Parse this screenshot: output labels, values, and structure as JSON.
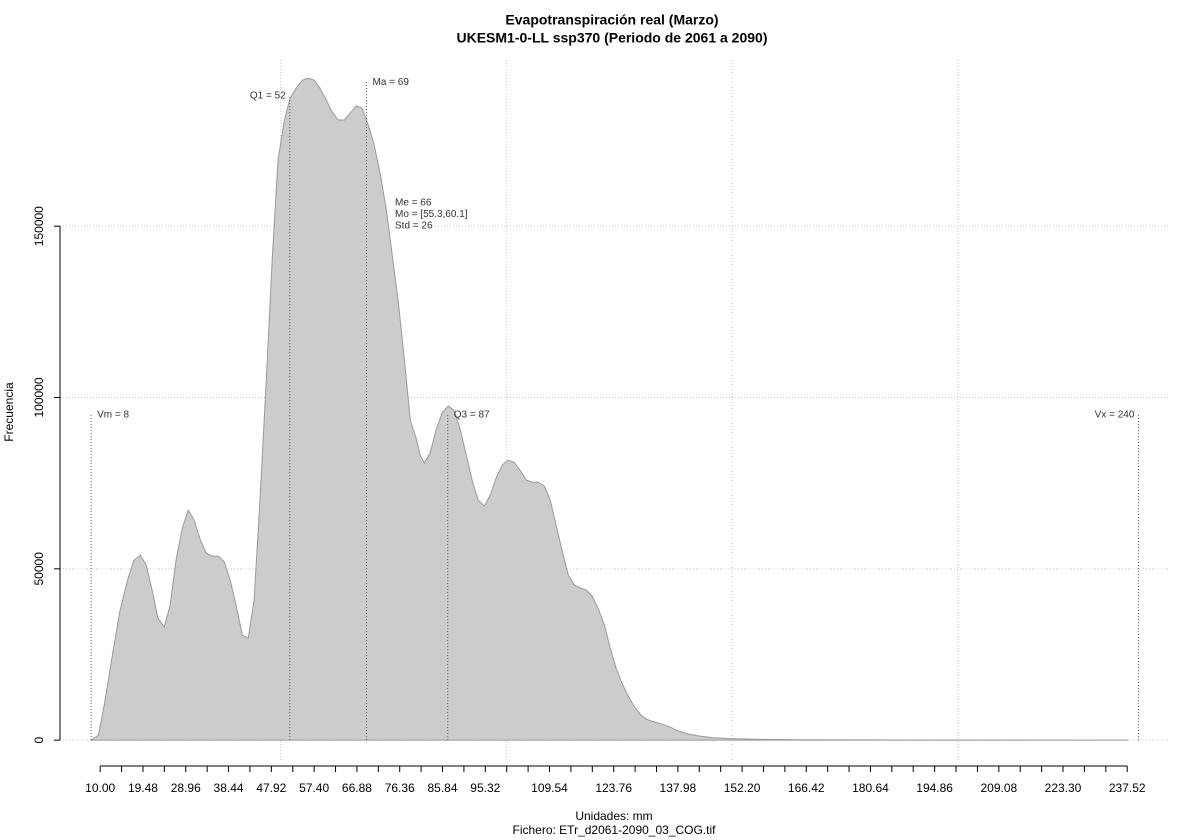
{
  "chart_data": {
    "type": "area",
    "title": "Evapotranspiración real (Marzo)",
    "subtitle": "UKESM1-0-LL ssp370 (Periodo de 2061 a 2090)",
    "x_label": "Unidades: mm",
    "footnote": "Fichero: ETr_d2061-2090_03_COG.tif",
    "y_label": "Frecuencia",
    "color": "#cccccc",
    "line_color": "#9a9a9a",
    "grid": true,
    "xgrid": [
      50,
      100,
      150,
      200
    ],
    "xlim": [
      1.1,
      247.0
    ],
    "ylim": [
      -5800,
      198500
    ],
    "yticks": [
      0,
      50000,
      100000,
      150000
    ],
    "xticks": [
      {
        "value": 10.0,
        "label": "10.00"
      },
      {
        "value": 14.74,
        "label": null
      },
      {
        "value": 19.48,
        "label": "19.48"
      },
      {
        "value": 24.22,
        "label": null
      },
      {
        "value": 28.96,
        "label": "28.96"
      },
      {
        "value": 33.7,
        "label": null
      },
      {
        "value": 38.44,
        "label": "38.44"
      },
      {
        "value": 43.18,
        "label": null
      },
      {
        "value": 47.92,
        "label": "47.92"
      },
      {
        "value": 52.66,
        "label": null
      },
      {
        "value": 57.4,
        "label": "57.40"
      },
      {
        "value": 62.14,
        "label": null
      },
      {
        "value": 66.88,
        "label": "66.88"
      },
      {
        "value": 71.62,
        "label": null
      },
      {
        "value": 76.36,
        "label": "76.36"
      },
      {
        "value": 81.1,
        "label": null
      },
      {
        "value": 85.84,
        "label": "85.84"
      },
      {
        "value": 90.58,
        "label": null
      },
      {
        "value": 95.32,
        "label": "95.32"
      },
      {
        "value": 100.06,
        "label": null
      },
      {
        "value": 104.8,
        "label": null
      },
      {
        "value": 109.54,
        "label": "109.54"
      },
      {
        "value": 114.28,
        "label": null
      },
      {
        "value": 119.02,
        "label": null
      },
      {
        "value": 123.76,
        "label": "123.76"
      },
      {
        "value": 128.5,
        "label": null
      },
      {
        "value": 133.24,
        "label": null
      },
      {
        "value": 137.98,
        "label": "137.98"
      },
      {
        "value": 142.72,
        "label": null
      },
      {
        "value": 147.46,
        "label": null
      },
      {
        "value": 152.2,
        "label": "152.20"
      },
      {
        "value": 156.94,
        "label": null
      },
      {
        "value": 161.68,
        "label": null
      },
      {
        "value": 166.42,
        "label": "166.42"
      },
      {
        "value": 171.16,
        "label": null
      },
      {
        "value": 175.9,
        "label": null
      },
      {
        "value": 180.64,
        "label": "180.64"
      },
      {
        "value": 185.38,
        "label": null
      },
      {
        "value": 190.12,
        "label": null
      },
      {
        "value": 194.86,
        "label": "194.86"
      },
      {
        "value": 199.6,
        "label": null
      },
      {
        "value": 204.34,
        "label": null
      },
      {
        "value": 209.08,
        "label": "209.08"
      },
      {
        "value": 213.82,
        "label": null
      },
      {
        "value": 218.56,
        "label": null
      },
      {
        "value": 223.3,
        "label": "223.30"
      },
      {
        "value": 228.04,
        "label": null
      },
      {
        "value": 232.78,
        "label": null
      },
      {
        "value": 237.52,
        "label": "237.52"
      }
    ],
    "x": [
      8.0,
      9.6,
      10.9,
      12.7,
      14.4,
      16.2,
      17.5,
      18.9,
      20.2,
      21.5,
      22.8,
      24.2,
      25.5,
      26.8,
      28.2,
      29.5,
      30.8,
      32.2,
      33.5,
      34.8,
      36.2,
      37.5,
      38.8,
      40.1,
      41.5,
      42.8,
      44.1,
      45.4,
      46.8,
      48.1,
      49.4,
      50.8,
      52.1,
      53.4,
      54.8,
      56.1,
      57.4,
      58.7,
      60.1,
      61.4,
      62.7,
      64.1,
      65.4,
      66.7,
      68.0,
      69.4,
      70.7,
      72.1,
      73.4,
      74.7,
      76.0,
      77.4,
      78.7,
      80.1,
      80.9,
      81.8,
      83.1,
      84.4,
      85.8,
      87.1,
      88.4,
      89.8,
      91.1,
      92.4,
      93.7,
      95.1,
      96.4,
      97.7,
      99.1,
      100.4,
      101.7,
      103.0,
      104.4,
      105.7,
      107.0,
      108.4,
      109.7,
      111.0,
      112.4,
      113.7,
      115.0,
      116.4,
      117.7,
      119.0,
      120.3,
      121.7,
      123.0,
      124.3,
      125.6,
      127.0,
      128.3,
      129.6,
      131.0,
      132.3,
      133.6,
      135.0,
      136.3,
      137.6,
      139.0,
      140.3,
      141.6,
      142.9,
      145.6,
      149.6,
      156.2,
      165.1,
      178.4,
      209.4,
      237.7
    ],
    "values": [
      0,
      1460,
      10200,
      24800,
      37900,
      47300,
      52500,
      54000,
      51100,
      43800,
      35600,
      33000,
      39400,
      52500,
      61900,
      67100,
      64200,
      58400,
      54600,
      53700,
      53700,
      52000,
      46700,
      39400,
      30600,
      29800,
      40900,
      70100,
      105100,
      140100,
      169300,
      181000,
      187400,
      190300,
      192600,
      193200,
      192600,
      190300,
      186800,
      183300,
      181000,
      181000,
      183000,
      185100,
      184500,
      179500,
      173700,
      164900,
      154700,
      141600,
      128400,
      110900,
      93400,
      87600,
      83200,
      80900,
      83800,
      90500,
      95700,
      97500,
      96300,
      90500,
      83200,
      75900,
      70100,
      68300,
      71500,
      76500,
      80300,
      81700,
      81100,
      78800,
      75900,
      75300,
      75300,
      74100,
      70100,
      62800,
      54900,
      48200,
      45300,
      44400,
      43800,
      42000,
      38500,
      33600,
      26900,
      21000,
      16600,
      12800,
      9900,
      7600,
      6100,
      5500,
      5000,
      4400,
      3800,
      2900,
      2300,
      1750,
      1460,
      1170,
      730,
      440,
      230,
      120,
      60,
      30,
      0
    ],
    "markers": [
      {
        "label": "Vm = 8",
        "value": 8,
        "y": 95000,
        "side": "right"
      },
      {
        "label": "Q1 = 52",
        "value": 52,
        "y": 188000,
        "side": "left"
      },
      {
        "label": "Ma = 69",
        "value": 69,
        "y": 192000,
        "side": "right"
      },
      {
        "label": "Q3 = 87",
        "value": 87,
        "y": 95000,
        "side": "right"
      },
      {
        "label": "Vx = 240",
        "value": 240,
        "y": 95000,
        "side": "left"
      }
    ],
    "stats": [
      "Me = 66",
      "Mo = [55.3,60.1]",
      "Std = 26"
    ]
  }
}
